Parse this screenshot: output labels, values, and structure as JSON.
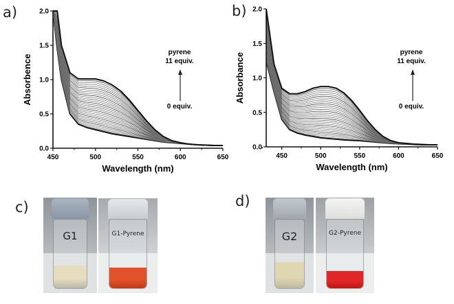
{
  "panels": {
    "a": "a)",
    "b": "b)",
    "c": "c)",
    "d": "d)"
  },
  "chart_data": [
    {
      "type": "line",
      "panel": "a",
      "xlabel": "Wavelength (nm)",
      "ylabel": "Absorbence",
      "xlim": [
        450,
        650
      ],
      "ylim": [
        0,
        2.0
      ],
      "xticks": [
        "450",
        "500",
        "550",
        "600",
        "650"
      ],
      "yticks": [
        "0.0",
        "0.5",
        "1.0",
        "1.5",
        "2.0"
      ],
      "annotation_top": [
        "pyrene",
        "11 equiv."
      ],
      "annotation_bottom": "0 equiv.",
      "n_curves": 30,
      "x": [
        450,
        455,
        460,
        470,
        480,
        490,
        500,
        510,
        520,
        530,
        540,
        550,
        560,
        570,
        580,
        590,
        600,
        610,
        620,
        630,
        640,
        650
      ],
      "series": [
        {
          "name": "0 equiv.",
          "values": [
            2.0,
            1.45,
            1.0,
            0.5,
            0.35,
            0.3,
            0.27,
            0.24,
            0.21,
            0.19,
            0.17,
            0.15,
            0.13,
            0.11,
            0.09,
            0.08,
            0.07,
            0.06,
            0.05,
            0.045,
            0.04,
            0.04
          ]
        },
        {
          "name": "11 equiv.",
          "values": [
            2.0,
            2.0,
            1.5,
            1.1,
            1.01,
            1.01,
            1.01,
            0.98,
            0.92,
            0.83,
            0.7,
            0.55,
            0.4,
            0.27,
            0.17,
            0.11,
            0.08,
            0.06,
            0.05,
            0.045,
            0.04,
            0.04
          ]
        }
      ]
    },
    {
      "type": "line",
      "panel": "b",
      "xlabel": "Wavelength (nm)",
      "ylabel": "Absorbance",
      "xlim": [
        430,
        650
      ],
      "ylim": [
        0,
        2.0
      ],
      "xticks": [
        "450",
        "500",
        "550",
        "600",
        "650"
      ],
      "yticks": [
        "0.0",
        "0.5",
        "1.0",
        "1.5",
        "2.0"
      ],
      "annotation_top": [
        "pyrene",
        "11 equiv."
      ],
      "annotation_bottom": "0 equiv.",
      "n_curves": 30,
      "x": [
        430,
        440,
        450,
        460,
        470,
        480,
        490,
        500,
        510,
        520,
        530,
        540,
        550,
        560,
        570,
        580,
        590,
        600,
        610,
        620,
        630,
        640,
        650
      ],
      "series": [
        {
          "name": "0 equiv.",
          "values": [
            1.25,
            0.8,
            0.4,
            0.25,
            0.2,
            0.17,
            0.15,
            0.13,
            0.12,
            0.11,
            0.1,
            0.095,
            0.09,
            0.08,
            0.07,
            0.06,
            0.05,
            0.045,
            0.04,
            0.035,
            0.03,
            0.03,
            0.03
          ]
        },
        {
          "name": "11 equiv.",
          "values": [
            2.0,
            1.2,
            0.85,
            0.77,
            0.77,
            0.8,
            0.85,
            0.875,
            0.875,
            0.85,
            0.78,
            0.67,
            0.53,
            0.38,
            0.25,
            0.15,
            0.09,
            0.06,
            0.05,
            0.04,
            0.035,
            0.03,
            0.03
          ]
        }
      ]
    }
  ],
  "photos": {
    "c": [
      {
        "label": "G1",
        "liquid": "#e6dcc0",
        "liquid2": "#b8b7a6"
      },
      {
        "label": "G1-Pyrene",
        "liquid": "#e2522a",
        "liquid2": "#c23818"
      }
    ],
    "d": [
      {
        "label": "G2",
        "liquid": "#e0d6b2",
        "liquid2": "#bdb89c"
      },
      {
        "label": "G2-Pyrene",
        "liquid": "#e02626",
        "liquid2": "#c21414"
      }
    ]
  }
}
